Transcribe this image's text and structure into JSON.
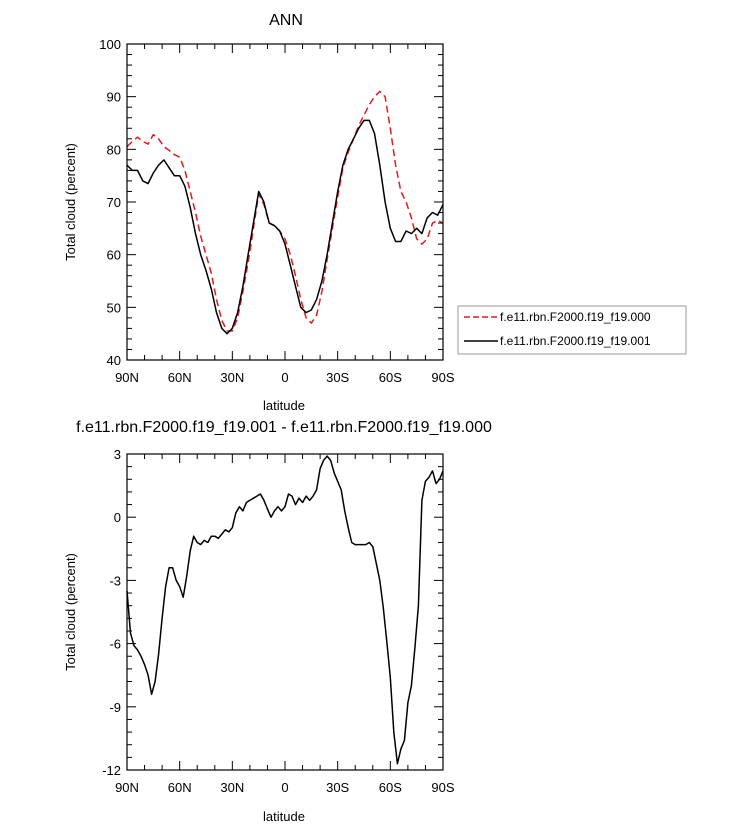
{
  "chart_data": [
    {
      "type": "line",
      "title": "ANN",
      "xlabel": "latitude",
      "ylabel": "Total cloud (percent)",
      "xlim": [
        90,
        -90
      ],
      "ylim": [
        40,
        100
      ],
      "x_ticks": [
        90,
        60,
        30,
        0,
        -30,
        -60,
        -90
      ],
      "x_tick_labels": [
        "90N",
        "60N",
        "30N",
        "0",
        "30S",
        "60S",
        "90S"
      ],
      "y_ticks": [
        40,
        50,
        60,
        70,
        80,
        90,
        100
      ],
      "y_tick_labels": [
        "40",
        "50",
        "60",
        "70",
        "80",
        "90",
        "100"
      ],
      "grid": false,
      "legend_position": "right",
      "series": [
        {
          "name": "f.e11.rbn.F2000.f19_f19.000",
          "color": "#e41a1c",
          "dash": "dashed",
          "x": [
            90,
            87,
            84,
            81,
            78,
            75,
            72,
            69,
            66,
            63,
            60,
            57,
            54,
            51,
            48,
            45,
            42,
            39,
            36,
            33,
            30,
            27,
            24,
            21,
            18,
            15,
            12,
            9,
            6,
            3,
            0,
            -3,
            -6,
            -9,
            -12,
            -15,
            -18,
            -21,
            -24,
            -27,
            -30,
            -33,
            -36,
            -39,
            -42,
            -45,
            -48,
            -51,
            -54,
            -57,
            -60,
            -63,
            -66,
            -69,
            -72,
            -75,
            -78,
            -81,
            -84,
            -87,
            -90
          ],
          "values": [
            80.5,
            81.5,
            82.3,
            81.5,
            81,
            82.8,
            82,
            80.5,
            79.8,
            79,
            78.5,
            76,
            72,
            68,
            63.5,
            60,
            56.5,
            51.5,
            47.5,
            45.5,
            45.5,
            48,
            53,
            58.5,
            65,
            71.5,
            69.5,
            66,
            65.5,
            64.5,
            63,
            60,
            56,
            51.5,
            48,
            47,
            48.5,
            53,
            59,
            65,
            71,
            76.5,
            79.5,
            82,
            84.5,
            86.5,
            88.5,
            90,
            91,
            90,
            84,
            77,
            72,
            70,
            67,
            63,
            62,
            63,
            66,
            66.5,
            66
          ]
        },
        {
          "name": "f.e11.rbn.F2000.f19_f19.001",
          "color": "#000000",
          "dash": "solid",
          "x": [
            90,
            87,
            84,
            81,
            78,
            75,
            72,
            69,
            66,
            63,
            60,
            57,
            54,
            51,
            48,
            45,
            42,
            39,
            36,
            33,
            30,
            27,
            24,
            21,
            18,
            15,
            12,
            9,
            6,
            3,
            0,
            -3,
            -6,
            -9,
            -12,
            -15,
            -18,
            -21,
            -24,
            -27,
            -30,
            -33,
            -36,
            -39,
            -42,
            -45,
            -48,
            -51,
            -54,
            -57,
            -60,
            -63,
            -66,
            -69,
            -72,
            -75,
            -78,
            -81,
            -84,
            -87,
            -90
          ],
          "values": [
            77,
            76,
            76,
            74,
            73.5,
            75.5,
            77,
            78,
            76.5,
            75,
            75,
            73,
            69,
            64,
            60,
            57,
            53.5,
            49,
            46,
            45,
            46,
            49,
            54,
            60,
            66,
            72,
            70,
            66,
            65.5,
            64.5,
            62,
            58,
            54,
            50,
            49,
            49.5,
            51.5,
            55,
            60,
            66,
            72,
            77,
            80,
            82,
            84,
            85.5,
            85.5,
            83,
            77,
            70,
            65,
            62.5,
            62.5,
            64.5,
            64,
            65,
            64,
            67,
            68,
            67.5,
            69.5
          ]
        }
      ]
    },
    {
      "type": "line",
      "title": "f.e11.rbn.F2000.f19_f19.001 - f.e11.rbn.F2000.f19_f19.000",
      "xlabel": "latitude",
      "ylabel": "Total cloud (percent)",
      "xlim": [
        90,
        -90
      ],
      "ylim": [
        -12,
        3
      ],
      "x_ticks": [
        90,
        60,
        30,
        0,
        -30,
        -60,
        -90
      ],
      "x_tick_labels": [
        "90N",
        "60N",
        "30N",
        "0",
        "30S",
        "60S",
        "90S"
      ],
      "y_ticks": [
        -12,
        -9,
        -6,
        -3,
        0,
        3
      ],
      "y_tick_labels": [
        "-12",
        "-9",
        "-6",
        "-3",
        "0",
        "3"
      ],
      "grid": false,
      "series": [
        {
          "color": "#000000",
          "dash": "solid",
          "x": [
            90,
            88,
            86,
            84,
            82,
            80,
            78,
            76,
            74,
            72,
            70,
            68,
            66,
            64,
            62,
            60,
            58,
            56,
            54,
            52,
            50,
            48,
            46,
            44,
            42,
            40,
            38,
            36,
            34,
            32,
            30,
            28,
            26,
            24,
            22,
            20,
            18,
            16,
            14,
            12,
            10,
            8,
            6,
            4,
            2,
            0,
            -2,
            -4,
            -6,
            -8,
            -10,
            -12,
            -14,
            -16,
            -18,
            -20,
            -22,
            -24,
            -26,
            -28,
            -30,
            -32,
            -34,
            -36,
            -38,
            -40,
            -42,
            -44,
            -46,
            -48,
            -50,
            -52,
            -54,
            -56,
            -58,
            -60,
            -62,
            -64,
            -66,
            -68,
            -70,
            -72,
            -74,
            -76,
            -78,
            -80,
            -82,
            -84,
            -86,
            -88,
            -90
          ],
          "values": [
            -3.5,
            -5.5,
            -6.1,
            -6.3,
            -6.6,
            -7,
            -7.5,
            -8.4,
            -7.8,
            -6.5,
            -4.8,
            -3.3,
            -2.4,
            -2.4,
            -3,
            -3.3,
            -3.8,
            -2.8,
            -1.6,
            -0.9,
            -1.2,
            -1.3,
            -1.1,
            -1.2,
            -0.9,
            -0.9,
            -1,
            -0.8,
            -0.6,
            -0.7,
            -0.5,
            0.2,
            0.5,
            0.3,
            0.7,
            0.8,
            0.9,
            1,
            1.1,
            0.8,
            0.4,
            0,
            0.3,
            0.5,
            0.3,
            0.5,
            1.1,
            1,
            0.6,
            0.9,
            0.7,
            1,
            0.8,
            1,
            1.3,
            2.3,
            2.7,
            2.9,
            2.7,
            2.1,
            1.7,
            1.3,
            0.3,
            -0.5,
            -1.2,
            -1.3,
            -1.3,
            -1.3,
            -1.3,
            -1.2,
            -1.4,
            -2.2,
            -3,
            -4.3,
            -5.9,
            -7.6,
            -10.2,
            -11.7,
            -11,
            -10.6,
            -8.8,
            -8,
            -6.2,
            -4.2,
            0.8,
            1.7,
            1.9,
            2.2,
            1.6,
            1.8,
            2.2
          ]
        }
      ]
    }
  ]
}
